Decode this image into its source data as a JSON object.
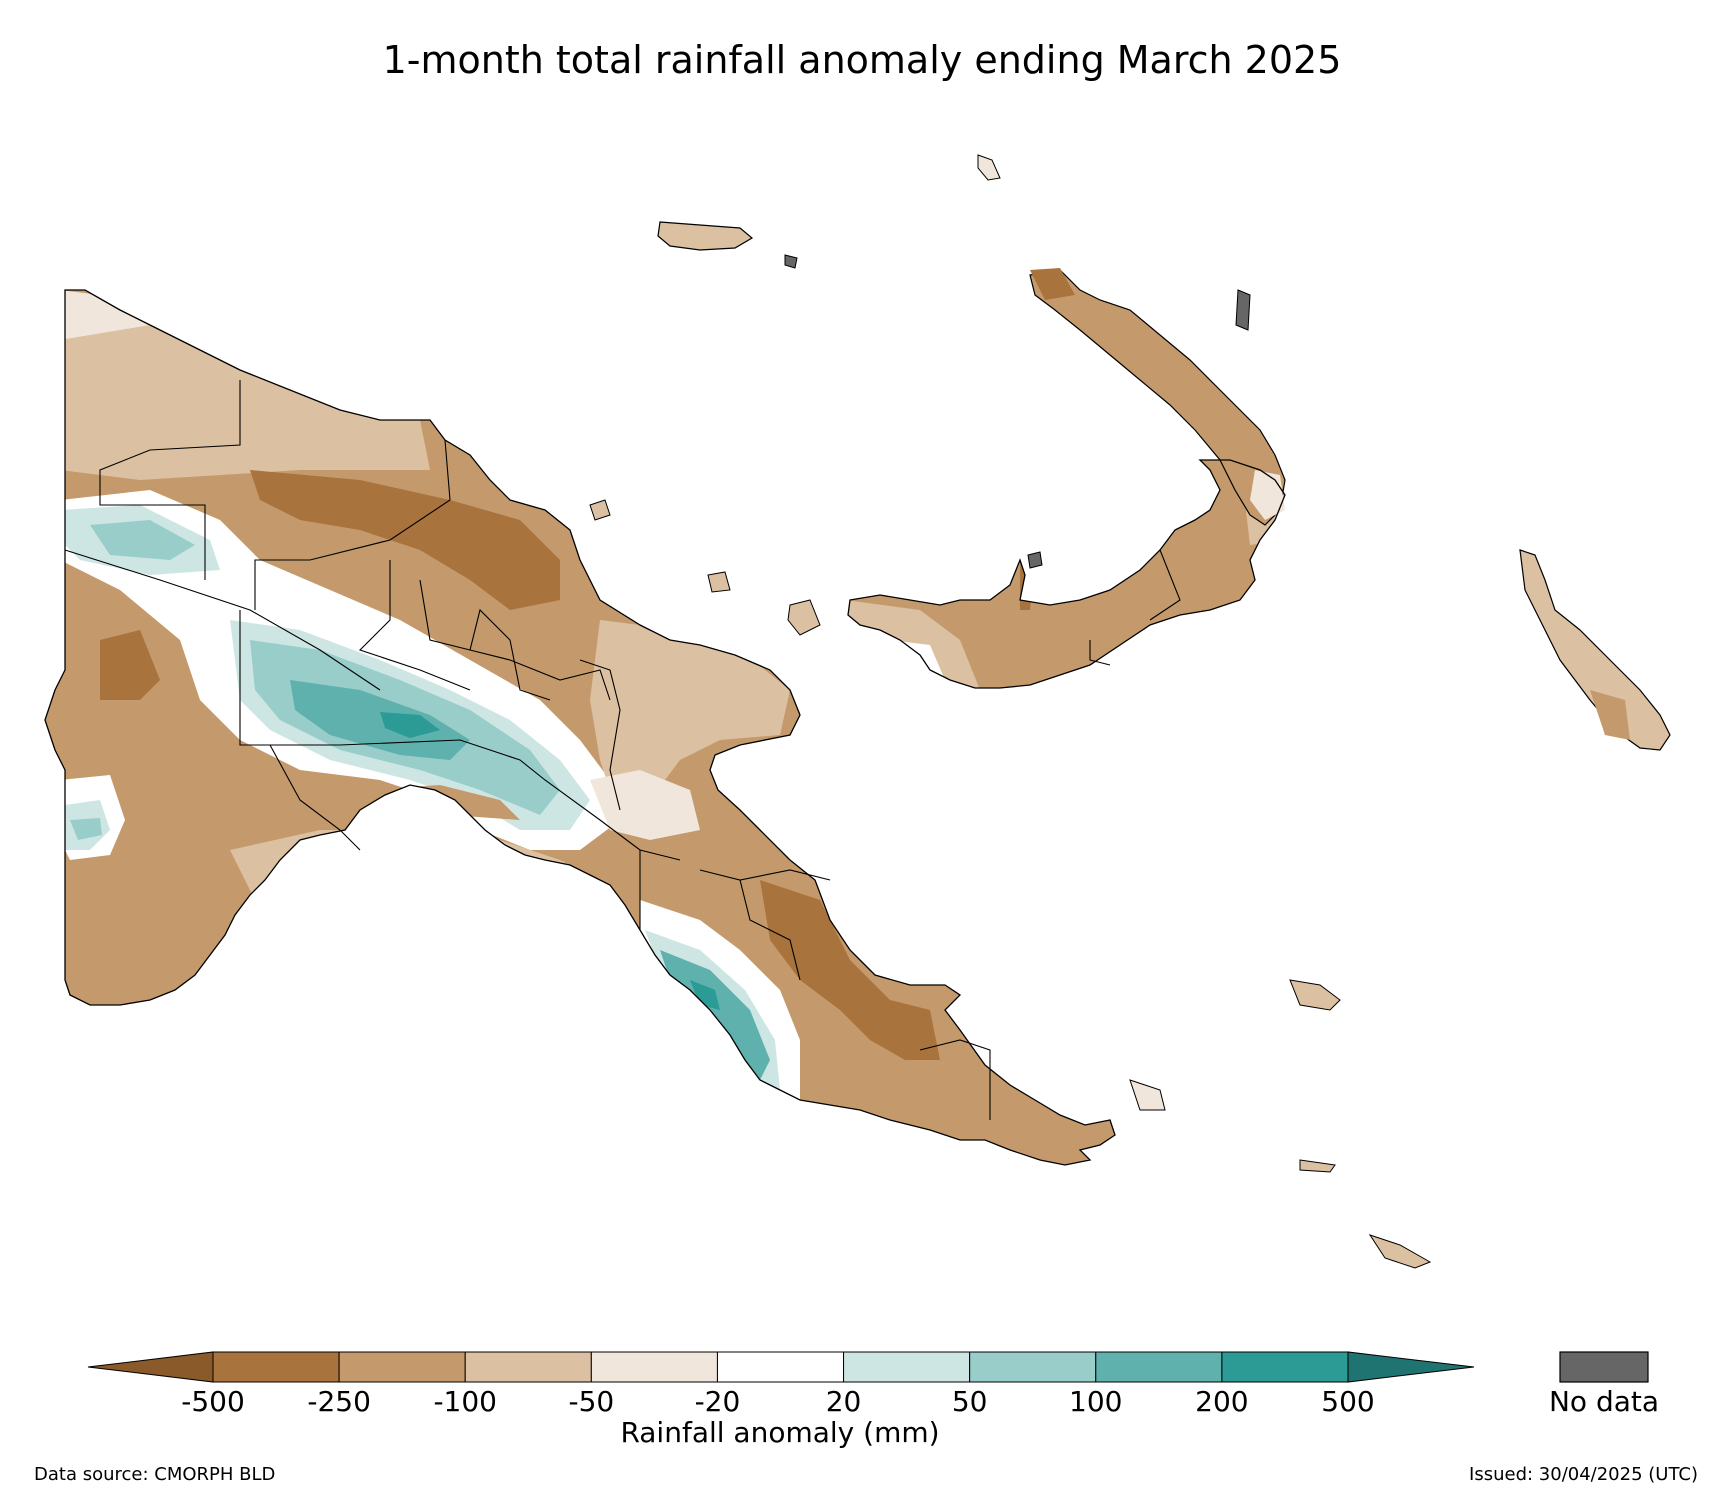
{
  "title": "1-month total rainfall anomaly ending March 2025",
  "legend": {
    "label": "Rainfall anomaly (mm)",
    "ticks": [
      "-500",
      "-250",
      "-100",
      "-50",
      "-20",
      "20",
      "50",
      "100",
      "200",
      "500"
    ],
    "bins": [
      {
        "range": "< -500",
        "color": "#8a5a2b"
      },
      {
        "range": "-500 to -250",
        "color": "#a8733c"
      },
      {
        "range": "-250 to -100",
        "color": "#c49a6c"
      },
      {
        "range": "-100 to -50",
        "color": "#dbc0a2"
      },
      {
        "range": "-50 to -20",
        "color": "#f1e6dc"
      },
      {
        "range": "-20 to 20",
        "color": "#ffffff"
      },
      {
        "range": "20 to 50",
        "color": "#cde6e4"
      },
      {
        "range": "50 to 100",
        "color": "#98cdca"
      },
      {
        "range": "100 to 200",
        "color": "#5fb1ad"
      },
      {
        "range": "200 to 500",
        "color": "#2c9a95"
      },
      {
        "range": "> 500",
        "color": "#1f7370"
      }
    ],
    "no_data": {
      "label": "No data",
      "color": "#666666"
    }
  },
  "footer": {
    "data_source": "Data source: CMORPH BLD",
    "issued": "Issued: 30/04/2025 (UTC)"
  }
}
